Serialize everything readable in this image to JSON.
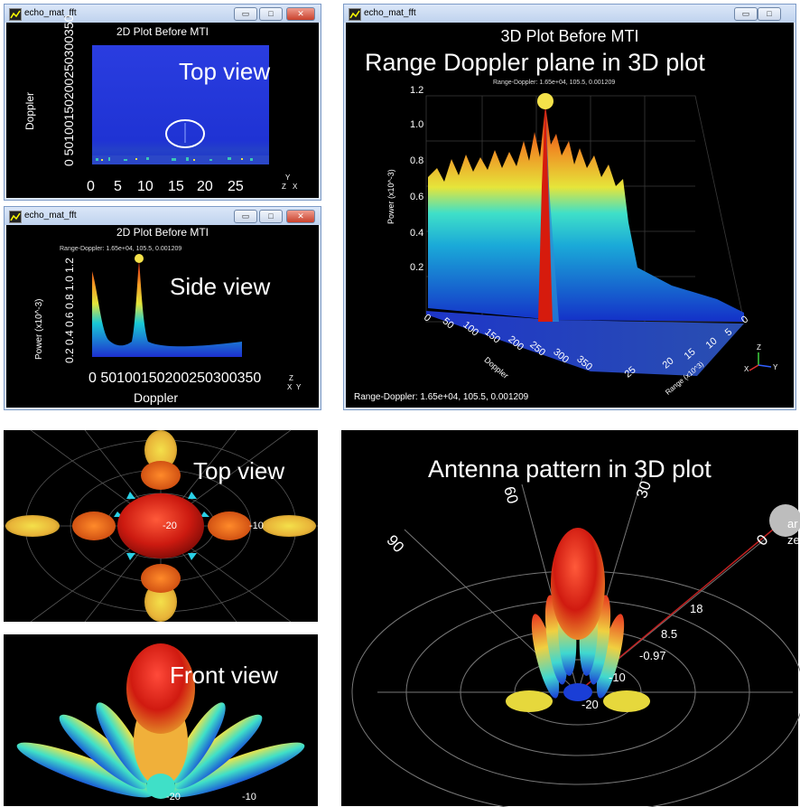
{
  "windows": {
    "top_left": {
      "window_title": "echo_mat_fft",
      "plot_title": "2D Plot Before MTI",
      "overlay": "Top view",
      "y_label": "Doppler",
      "y_ticks": [
        "0",
        "50",
        "100",
        "150",
        "200",
        "250",
        "300",
        "350"
      ],
      "y_tick_string": "0 50100150200250300350",
      "x_ticks": [
        "0",
        "5",
        "10",
        "15",
        "20",
        "25"
      ],
      "axis_triad": {
        "y": "Y",
        "z": "Z",
        "x": "X"
      }
    },
    "mid_left": {
      "window_title": "echo_mat_fft",
      "plot_title": "2D Plot Before MTI",
      "overlay": "Side view",
      "marker_readout": "Range-Doppler: 1.65e+04, 105.5, 0.001209",
      "y_label": "Power (x10^-3)",
      "y_tick_string": "0.2 0.4 0.6 0.8 1.0 1.2",
      "x_tick_string": "0 50100150200250300350",
      "x_label": "Doppler",
      "axis_triad": {
        "z": "Z",
        "x": "X",
        "y": "Y"
      }
    },
    "right": {
      "window_title": "echo_mat_fft",
      "plot_title": "3D Plot Before MTI",
      "overlay": "Range Doppler plane in 3D plot",
      "marker_readout": "Range-Doppler: 1.65e+04, 105.5, 0.001209",
      "status_readout": "Range-Doppler: 1.65e+04, 105.5, 0.001209",
      "power_label": "Power (x10^-3)",
      "power_ticks": [
        "1.2",
        "1.0",
        "0.8",
        "0.6",
        "0.4",
        "0.2"
      ],
      "doppler_label": "Doppler",
      "doppler_ticks": [
        "0",
        "50",
        "100",
        "150",
        "200",
        "250",
        "300",
        "350"
      ],
      "range_label": "Range (x10^3)",
      "range_ticks": [
        "0",
        "5",
        "10",
        "15",
        "20",
        "25"
      ],
      "axis_triad": {
        "z": "Z",
        "x": "X",
        "y": "Y"
      }
    }
  },
  "antenna_panels": {
    "top_view": {
      "overlay": "Top view",
      "center_label": "-20",
      "right_label": "-10"
    },
    "front_view": {
      "overlay": "Front view",
      "bottom_labels": [
        "-20",
        "-10"
      ]
    },
    "pattern_3d": {
      "overlay": "Antenna pattern in 3D plot",
      "angle_labels": [
        "90",
        "60",
        "30",
        "0"
      ],
      "ring_labels": [
        "18",
        "8.5",
        "-0.97",
        "-10",
        "-20"
      ],
      "corner_text_1": "ar",
      "corner_text_2": "ze"
    }
  },
  "colors": {
    "titlebar": "#c9daf2",
    "close_button": "#c8412d",
    "plot_background": "#000000",
    "heatmap_blue": "#1a2fd6",
    "peak_red": "#d61b0d",
    "marker_yellow": "#f4e24a"
  }
}
